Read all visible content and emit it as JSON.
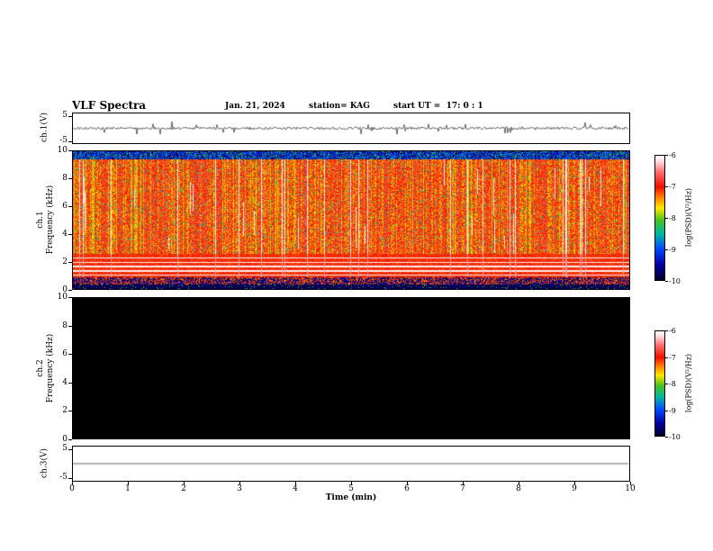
{
  "header": {
    "title": "VLF Spectra",
    "date": "Jan. 21, 2024",
    "station": "station= KAG",
    "start_ut": "start UT =  17: 0 : 1"
  },
  "x_axis": {
    "label": "Time (min)",
    "min": 0,
    "max": 10,
    "ticks": [
      "0",
      "1",
      "2",
      "3",
      "4",
      "5",
      "6",
      "7",
      "8",
      "9",
      "10"
    ]
  },
  "panels": [
    {
      "id": "ch1-voltage",
      "ylabel": "ch.1(V)",
      "yticks": [
        "5",
        "-5"
      ],
      "ylim": [
        -5,
        5
      ]
    },
    {
      "id": "ch1-spectrogram",
      "ylabel_line1": "ch.1",
      "ylabel_line2": "Frequency (kHz)",
      "yticks": [
        "10",
        "8",
        "6",
        "4",
        "2",
        "0"
      ],
      "ylim": [
        0,
        10
      ]
    },
    {
      "id": "ch2-spectrogram",
      "ylabel_line1": "ch.2",
      "ylabel_line2": "Frequency (kHz)",
      "yticks": [
        "10",
        "8",
        "6",
        "4",
        "2",
        "0"
      ],
      "ylim": [
        0,
        10
      ]
    },
    {
      "id": "ch3-voltage",
      "ylabel": "ch.3(V)",
      "yticks": [
        "5",
        "-5"
      ],
      "ylim": [
        -5,
        5
      ]
    }
  ],
  "colorbars": [
    {
      "label": "log(PSD)(V²/Hz)",
      "ticks": [
        "-6",
        "-7",
        "-8",
        "-9",
        "-10"
      ],
      "range": [
        -6,
        -10
      ]
    },
    {
      "label": "log(PSD)(V²/Hz)",
      "ticks": [
        "-6",
        "-7",
        "-8",
        "-9",
        "-10"
      ],
      "range": [
        -6,
        -10
      ]
    }
  ],
  "colormap": [
    {
      "t": 0.0,
      "c": "#ffffff"
    },
    {
      "t": 0.05,
      "c": "#ffd8d8"
    },
    {
      "t": 0.13,
      "c": "#ff7070"
    },
    {
      "t": 0.25,
      "c": "#ee1000"
    },
    {
      "t": 0.33,
      "c": "#ff7800"
    },
    {
      "t": 0.42,
      "c": "#ffe800"
    },
    {
      "t": 0.52,
      "c": "#48c020"
    },
    {
      "t": 0.63,
      "c": "#00b8a0"
    },
    {
      "t": 0.75,
      "c": "#0048ff"
    },
    {
      "t": 0.88,
      "c": "#0000a0"
    },
    {
      "t": 1.0,
      "c": "#000028"
    }
  ],
  "seed": 1234567,
  "chart_data": [
    {
      "type": "line",
      "name": "ch.1 voltage waveform",
      "panel": "ch1-voltage",
      "x_range_min": [
        0,
        10
      ],
      "ylim_volts": [
        -5,
        5
      ],
      "baseline_volts": 0,
      "noise_amplitude_volts": 0.5,
      "spike_amplitude_volts": 2.5,
      "spike_probability": 0.08,
      "description": "dense random noise trace centered at 0 V for the full 10 minutes"
    },
    {
      "type": "heatmap",
      "name": "ch.1 VLF spectrogram",
      "panel": "ch1-spectrogram",
      "x_range_min": [
        0,
        10
      ],
      "freq_range_khz": [
        0,
        10
      ],
      "value_range_log_psd": [
        -10,
        -6
      ],
      "background_value": -7.1,
      "black_band_khz": [
        0,
        0.35
      ],
      "dark_red_band_khz": [
        0.35,
        0.85
      ],
      "dense_red_band_khz": [
        0.85,
        2.6
      ],
      "white_line_freqs_khz": [
        1.05,
        1.35,
        1.65,
        1.95,
        2.3
      ],
      "top_dark_band_khz": [
        9.45,
        10
      ],
      "white_gap_column_probability": 0.05,
      "white_blob_probability": 0.05,
      "yellow_column_probability": 0.16,
      "green_speck_probability": 0.07,
      "description": "broadband activity: mostly red/orange (~ -7 log PSD) with yellow-green vertical streaks, white saturation dropout columns, thin white horizontal lines between 1 and 2.5 kHz, near-black band below 0.35 kHz and dark blue/green band above 9.45 kHz"
    },
    {
      "type": "heatmap",
      "name": "ch.2 VLF spectrogram",
      "panel": "ch2-spectrogram",
      "x_range_min": [
        0,
        10
      ],
      "freq_range_khz": [
        0,
        10
      ],
      "value_range_log_psd": [
        -10,
        -6
      ],
      "uniform_value": -10,
      "fill_color": "#000000",
      "description": "no signal — entire panel at minimum power (solid black)"
    },
    {
      "type": "line",
      "name": "ch.3 voltage waveform",
      "panel": "ch3-voltage",
      "x_range_min": [
        0,
        10
      ],
      "ylim_volts": [
        -5,
        5
      ],
      "baseline_volts": 0,
      "noise_amplitude_volts": 0,
      "description": "perfectly flat line at 0 V"
    }
  ]
}
